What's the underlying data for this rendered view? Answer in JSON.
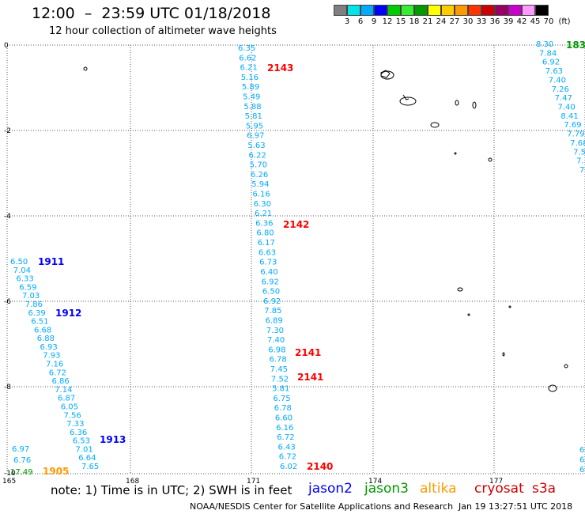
{
  "header": {
    "title": "12:00  –  23:59 UTC 01/18/2018",
    "subtitle": "12 hour collection of altimeter wave heights"
  },
  "colorbar": {
    "unit": "(ft)",
    "colors": [
      "#808080",
      "#00e5e5",
      "#00aaff",
      "#0000ff",
      "#00cc00",
      "#33ee33",
      "#009900",
      "#ffff00",
      "#ffcc00",
      "#ff9900",
      "#ff3300",
      "#cc0000",
      "#990066",
      "#cc00cc",
      "#ff99ff",
      "#000000"
    ],
    "labels": [
      "3",
      "6",
      "9",
      "12",
      "15",
      "18",
      "21",
      "24",
      "27",
      "30",
      "33",
      "36",
      "39",
      "42",
      "45",
      "70"
    ]
  },
  "map": {
    "lat_ticks": [
      "0",
      "-2",
      "-4",
      "-6",
      "-8",
      "-10"
    ],
    "lon_ticks": [
      "165",
      "168",
      "171",
      "174",
      "177"
    ],
    "grid_color": "#555555",
    "coast_color": "#000000",
    "pass_labels": [
      {
        "text": "2143",
        "color": "#ff0000"
      },
      {
        "text": "2142",
        "color": "#ff0000"
      },
      {
        "text": "2141",
        "color": "#ff0000"
      },
      {
        "text": "2141",
        "color": "#ff0000"
      },
      {
        "text": "2140",
        "color": "#ff0000"
      },
      {
        "text": "1911",
        "color": "#0000ff"
      },
      {
        "text": "1912",
        "color": "#0000ff"
      },
      {
        "text": "1913",
        "color": "#0000ff"
      },
      {
        "text": "1905",
        "color": "#ff9900"
      },
      {
        "text": "183",
        "color": "#009900"
      }
    ],
    "tracks": [
      {
        "color": "#00aaff",
        "values": [
          "6.35",
          "6.62",
          "6.21",
          "5.16",
          "5.89",
          "5.49",
          "5.88",
          "5.81",
          "5.95",
          "6.97",
          "5.63",
          "6.22",
          "5.70",
          "6.26",
          "5.94",
          "6.16",
          "6.30",
          "6.21",
          "6.36",
          "6.80",
          "6.17",
          "6.63",
          "6.73",
          "6.40",
          "6.92",
          "6.50",
          "6.92",
          "7.85",
          "6.89",
          "7.30",
          "7.40",
          "6.98",
          "6.78",
          "7.45",
          "7.52",
          "5.81",
          "6.75",
          "6.78",
          "6.60",
          "6.16",
          "6.72",
          "6.43",
          "6.72",
          "6.02"
        ]
      },
      {
        "color": "#00aaff",
        "values": [
          "6.50",
          "7.04",
          "6.33",
          "6.59",
          "7.03",
          "7.86",
          "6.39",
          "6.51",
          "6.68",
          "6.88",
          "6.93",
          "7.93",
          "7.16",
          "6.72",
          "6.86",
          "7.14",
          "6.87",
          "6.05",
          "7.56",
          "7.33",
          "6.36",
          "6.53",
          "7.01",
          "6.64",
          "7.65"
        ]
      },
      {
        "color": "#00aaff",
        "values": [
          "8.30",
          "7.84",
          "6.92",
          "7.63",
          "7.40",
          "7.26",
          "7.47",
          "7.40",
          "8.41",
          "7.69",
          "7.79",
          "7.68",
          "7.5",
          "7.",
          "7."
        ]
      },
      {
        "color": "#00aaff",
        "values": [
          "6.97",
          "6.76"
        ]
      },
      {
        "color": "#009900",
        "values": [
          "17.49"
        ]
      },
      {
        "color": "#00aaff",
        "values": [
          "6",
          "6",
          "6"
        ]
      }
    ]
  },
  "footer": {
    "note": "note:  1) Time is in UTC;  2) SWH is in feet",
    "legend": [
      {
        "name": "jason2",
        "color": "#0000ff"
      },
      {
        "name": "jason3",
        "color": "#009900"
      },
      {
        "name": "altika",
        "color": "#ff9900"
      },
      {
        "name": "cryosat",
        "color": "#cc0000"
      },
      {
        "name": "s3a",
        "color": "#cc0000"
      }
    ],
    "credit": "NOAA/NESDIS Center for Satellite Applications and Research",
    "timestamp": "Jan 19 13:27:51 UTC 2018"
  }
}
